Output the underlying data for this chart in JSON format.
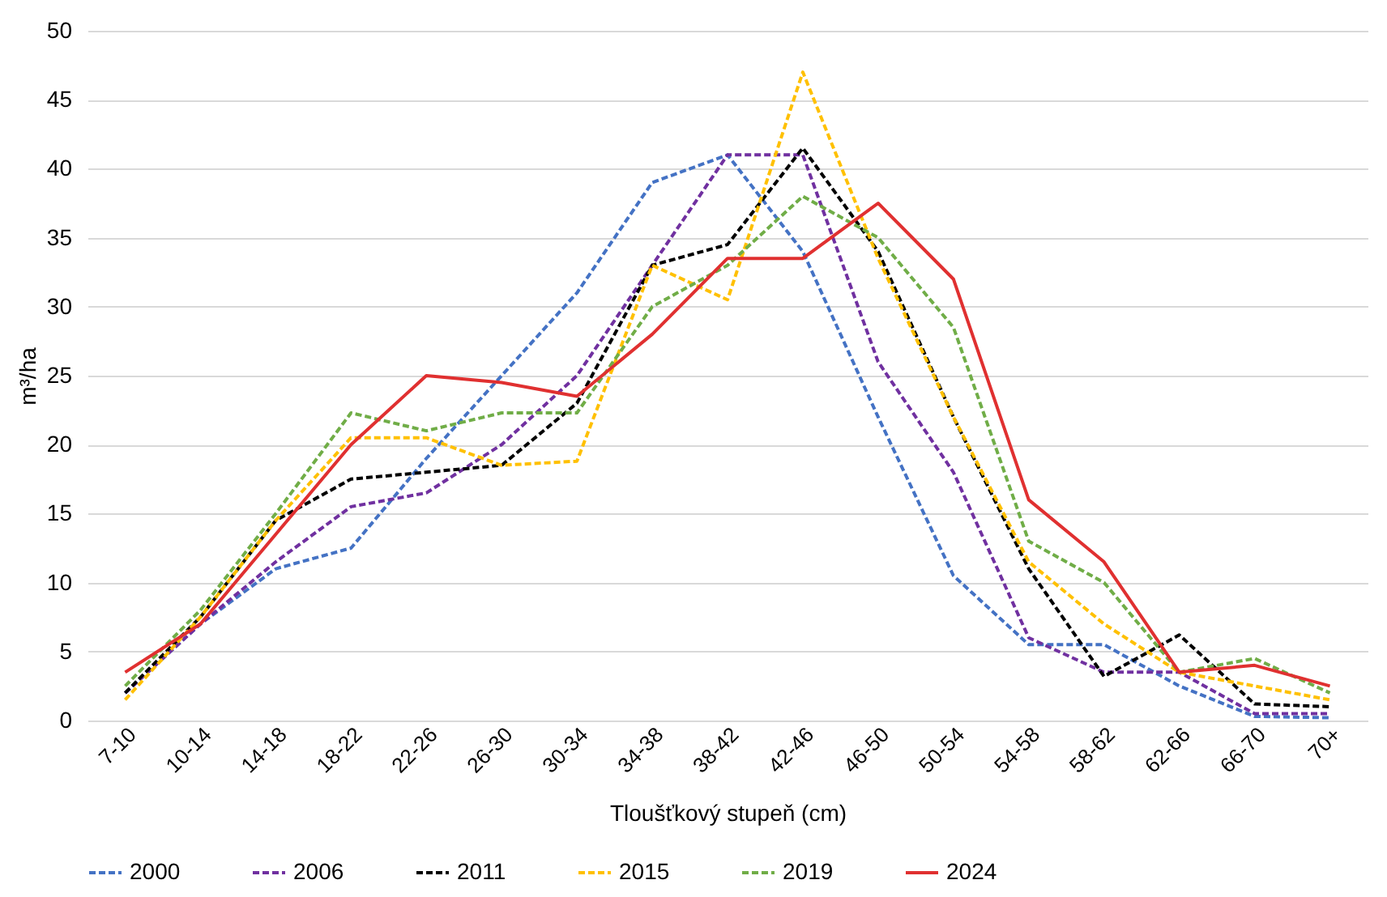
{
  "chart_data": {
    "type": "line",
    "xlabel": "Tloušťkový stupeň (cm)",
    "ylabel": "m³/ha",
    "categories": [
      "7-10",
      "10-14",
      "14-18",
      "18-22",
      "22-26",
      "26-30",
      "30-34",
      "34-38",
      "38-42",
      "42-46",
      "46-50",
      "50-54",
      "54-58",
      "58-62",
      "62-66",
      "66-70",
      "70+"
    ],
    "series": [
      {
        "name": "2000",
        "color": "#4472c4",
        "line_style": "dashed",
        "values": [
          2,
          7,
          11,
          12.5,
          19,
          25,
          31,
          39,
          41,
          34,
          22,
          10.5,
          5.5,
          5.5,
          2.5,
          0.3,
          0.2
        ]
      },
      {
        "name": "2006",
        "color": "#7030a0",
        "line_style": "dashed",
        "values": [
          2,
          7,
          11.5,
          15.5,
          16.5,
          20,
          25,
          33,
          41,
          41,
          26,
          18,
          6,
          3.5,
          3.5,
          0.5,
          0.5
        ]
      },
      {
        "name": "2011",
        "color": "#000000",
        "line_style": "dashed",
        "values": [
          2,
          7.5,
          14.5,
          17.5,
          18,
          18.5,
          23,
          33,
          34.5,
          41.5,
          34,
          22,
          11,
          3.2,
          6.2,
          1.2,
          1
        ]
      },
      {
        "name": "2015",
        "color": "#ffc000",
        "line_style": "dashed",
        "values": [
          1.5,
          7.5,
          14.5,
          20.5,
          20.5,
          18.5,
          18.8,
          33,
          30.5,
          47,
          33.5,
          22,
          11.5,
          7,
          3.5,
          2.5,
          1.5
        ]
      },
      {
        "name": "2019",
        "color": "#70ad47",
        "line_style": "dashed",
        "values": [
          2.5,
          8,
          15,
          22.3,
          21,
          22.3,
          22.3,
          30,
          33,
          38,
          35,
          28.5,
          13,
          10,
          3.5,
          4.5,
          2
        ]
      },
      {
        "name": "2024",
        "color": "#e03030",
        "line_style": "solid",
        "values": [
          3.5,
          7,
          13.5,
          20,
          25,
          24.5,
          23.5,
          28,
          33.5,
          33.5,
          37.5,
          32,
          16,
          11.5,
          3.5,
          4,
          2.5
        ]
      }
    ],
    "ylim": [
      0,
      50
    ],
    "yticks": [
      0,
      5,
      10,
      15,
      20,
      25,
      30,
      35,
      40,
      45,
      50
    ],
    "grid": "y",
    "legend": "bottom"
  }
}
